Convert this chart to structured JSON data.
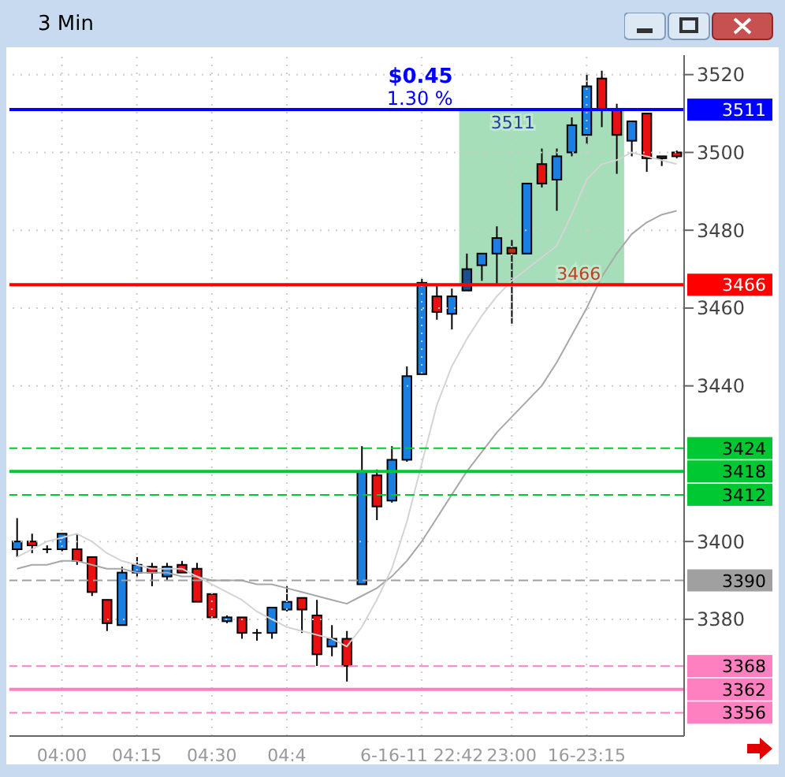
{
  "chart_data": {
    "type": "candlestick",
    "title": "3 Min",
    "categories": [
      null,
      null,
      null,
      "04:00",
      null,
      null,
      null,
      null,
      "04:15",
      null,
      null,
      null,
      null,
      "04:30",
      null,
      null,
      null,
      null,
      "04:4",
      null,
      null,
      null,
      null,
      null,
      null,
      null,
      null,
      "6-16-11 22:42",
      null,
      null,
      null,
      null,
      null,
      "23:00",
      null,
      null,
      null,
      null,
      "16-23:15",
      null,
      null,
      null,
      null,
      null,
      null
    ],
    "ohlc": [
      [
        3398,
        3406,
        3396,
        3400
      ],
      [
        3400,
        3402,
        3397,
        3399
      ],
      [
        3398,
        3399,
        3397,
        3398
      ],
      [
        3398,
        3402,
        3397.5,
        3402
      ],
      [
        3398,
        3402,
        3394,
        3395
      ],
      [
        3396,
        3396,
        3386,
        3387
      ],
      [
        3385,
        3385,
        3377,
        3379
      ],
      [
        3378.5,
        3393.5,
        3378.5,
        3392
      ],
      [
        3392,
        3396,
        3391,
        3394
      ],
      [
        3393.5,
        3394.5,
        3388.5,
        3392
      ],
      [
        3391,
        3394.5,
        3390,
        3393.5
      ],
      [
        3394,
        3395,
        3392,
        3392
      ],
      [
        3393,
        3394.5,
        3384.5,
        3384.5
      ],
      [
        3386.5,
        3386.5,
        3380.5,
        3380.5
      ],
      [
        3379.5,
        3381,
        3379,
        3380.5
      ],
      [
        3380.5,
        3380.5,
        3375,
        3376.5
      ],
      [
        3376.5,
        3377.5,
        3374.5,
        3376.5
      ],
      [
        3376.5,
        3383,
        3375,
        3383
      ],
      [
        3382.5,
        3388.5,
        3382,
        3384.5
      ],
      [
        3385.5,
        3385.5,
        3376.5,
        3382.5
      ],
      [
        3381,
        3385,
        3368,
        3371
      ],
      [
        3373,
        3378.5,
        3370.5,
        3375
      ],
      [
        3375,
        3377,
        3364,
        3368
      ],
      [
        3389,
        3424.5,
        3389,
        3418
      ],
      [
        3417,
        3418.5,
        3405.5,
        3409
      ],
      [
        3410.5,
        3424.5,
        3410,
        3421
      ],
      [
        3421,
        3445,
        3420.5,
        3442.5
      ],
      [
        3443,
        3467.5,
        3443,
        3466.5
      ],
      [
        3463,
        3466,
        3457,
        3459
      ],
      [
        3458.5,
        3465,
        3454.5,
        3463
      ],
      [
        3464.5,
        3474,
        3464.5,
        3470
      ],
      [
        3471,
        3474,
        3467,
        3474
      ],
      [
        3474,
        3481,
        3466,
        3478
      ],
      [
        3475.5,
        3477.5,
        3456,
        3474
      ],
      [
        3474,
        3492,
        3474,
        3492
      ],
      [
        3497,
        3501,
        3491,
        3492
      ],
      [
        3493,
        3501,
        3485,
        3499
      ],
      [
        3500,
        3509,
        3499,
        3507
      ],
      [
        3504.5,
        3520,
        3502,
        3517
      ],
      [
        3519,
        3521,
        3506.5,
        3511
      ],
      [
        3511,
        3512.5,
        3494.5,
        3504.5
      ],
      [
        3503,
        3508,
        3499,
        3508
      ],
      [
        3510,
        3510,
        3495,
        3498.5
      ],
      [
        3498.5,
        3499,
        3496.5,
        3499
      ],
      [
        3500,
        3500.5,
        3498.5,
        3499
      ]
    ],
    "colors": [
      "#1a7fe0",
      "#e81010",
      "#000000",
      "#1a7fe0",
      "#e81010",
      "#e81010",
      "#e81010",
      "#1a7fe0",
      "#1a7fe0",
      "#e81010",
      "#1a7fe0",
      "#e81010",
      "#e81010",
      "#e81010",
      "#1a7fe0",
      "#e81010",
      "#000000",
      "#1a7fe0",
      "#1a7fe0",
      "#e81010",
      "#e81010",
      "#1a7fe0",
      "#e81010",
      "#1a7fe0",
      "#e81010",
      "#1a7fe0",
      "#1a7fe0",
      "#1a7fe0",
      "#e81010",
      "#1a7fe0",
      "#1a4f90",
      "#1a7fe0",
      "#1a7fe0",
      "#b03010",
      "#1a7fe0",
      "#e81010",
      "#1a7fe0",
      "#1a7fe0",
      "#1a7fe0",
      "#e81010",
      "#e81010",
      "#1a7fe0",
      "#e81010",
      "#1a7fe0",
      "#e81010"
    ],
    "series": [
      {
        "type": "line",
        "color": "#a8a8a8",
        "values": [
          3393,
          3394,
          3394,
          3395,
          3395,
          3394,
          3393,
          3393,
          3392,
          3392,
          3392,
          3391,
          3391,
          3390,
          3390,
          3390,
          3389,
          3389,
          3388,
          3387,
          3386,
          3385,
          3384,
          3386,
          3388,
          3391,
          3395,
          3400,
          3406,
          3412,
          3418,
          3423,
          3428,
          3432,
          3436,
          3440,
          3446,
          3453,
          3460,
          3468,
          3474,
          3479,
          3482,
          3484,
          3485
        ]
      },
      {
        "type": "line",
        "color": "#d4d4d4",
        "values": [
          3396,
          3398,
          3400,
          3401,
          3402,
          3400,
          3397,
          3395,
          3394,
          3393,
          3393,
          3393,
          3391,
          3389,
          3387,
          3385,
          3382,
          3380,
          3378,
          3377,
          3376,
          3375,
          3373,
          3378,
          3385,
          3393,
          3405,
          3420,
          3435,
          3445,
          3452,
          3458,
          3463,
          3467,
          3470,
          3473,
          3476,
          3484,
          3493,
          3497,
          3498,
          3500,
          3499,
          3498,
          3497
        ]
      }
    ],
    "ylim": [
      3350,
      3525
    ],
    "yticks": [
      3380,
      3400,
      3440,
      3460,
      3480,
      3500,
      3520
    ],
    "grid": true,
    "ref_lines": [
      {
        "axis": "y",
        "value": 3511,
        "label": "3511",
        "color": "#0000ff",
        "line_style": "solid"
      },
      {
        "axis": "y",
        "value": 3466,
        "label": "3466",
        "color": "#ff0000",
        "line_style": "solid"
      },
      {
        "axis": "y",
        "value": 3424,
        "label": "3424",
        "color": "#00c832",
        "line_style": "dashed"
      },
      {
        "axis": "y",
        "value": 3418,
        "label": "3418",
        "color": "#00c832",
        "line_style": "solid"
      },
      {
        "axis": "y",
        "value": 3412,
        "label": "3412",
        "color": "#00c832",
        "line_style": "dashed"
      },
      {
        "axis": "y",
        "value": 3390,
        "label": "3390",
        "color": "#a0a0a0",
        "line_style": "dashed"
      },
      {
        "axis": "y",
        "value": 3368,
        "label": "3368",
        "color": "#ff80c0",
        "line_style": "dashed"
      },
      {
        "axis": "y",
        "value": 3362,
        "label": "3362",
        "color": "#ff80c0",
        "line_style": "solid"
      },
      {
        "axis": "y",
        "value": 3356,
        "label": "3356",
        "color": "#ff80c0",
        "line_style": "dashed"
      }
    ],
    "bands": [
      {
        "axis": "y",
        "from": 3466,
        "to": 3511,
        "color": "#8fd6a8"
      }
    ],
    "annotations": [
      "$0.45",
      "1.30 %",
      {
        "text": "3511",
        "y": 3511
      },
      {
        "text": "3466",
        "y": 3466
      }
    ]
  }
}
